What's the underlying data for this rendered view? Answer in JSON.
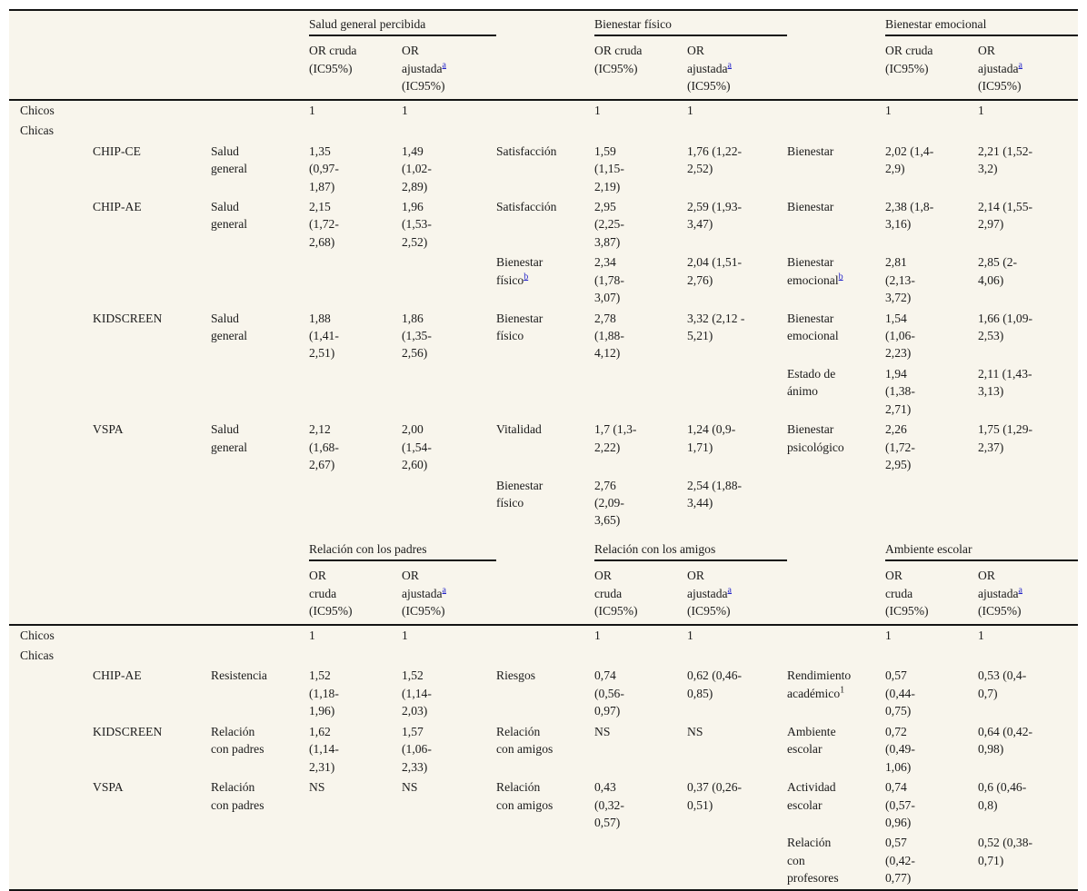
{
  "colors": {
    "table_background": "#f8f5ec",
    "rule_line": "#141414",
    "text": "#1b1b1b",
    "footnote_link": "#2323c8"
  },
  "table": {
    "sections": [
      {
        "groups": [
          {
            "title": "Salud general percibida"
          },
          {
            "title": "Bienestar físico"
          },
          {
            "title": "Bienestar emocional"
          }
        ],
        "or_headers": [
          {
            "pre": "OR cruda",
            "post": "(IC95%)"
          },
          {
            "pre": "OR ajustada",
            "sup": "a",
            "post": "(IC95%)"
          }
        ],
        "rows": [
          [
            "Chicos",
            "",
            "",
            "1",
            "1",
            "",
            "1",
            "1",
            "",
            "1",
            "1"
          ],
          [
            "Chicas",
            "",
            "",
            "",
            "",
            "",
            "",
            "",
            "",
            "",
            ""
          ],
          [
            "",
            "CHIP-CE",
            "Salud general",
            "1,35 (0,97-1,87)",
            "1,49 (1,02-2,89)",
            "Satisfacción",
            "1,59 (1,15-2,19)",
            "1,76 (1,22-2,52)",
            "Bienestar",
            "2,02 (1,4-2,9)",
            "2,21 (1,52-3,2)"
          ],
          [
            "",
            "CHIP-AE",
            "Salud general",
            "2,15 (1,72-2,68)",
            "1,96 (1,53-2,52)",
            "Satisfacción",
            "2,95 (2,25-3,87)",
            "2,59 (1,93-3,47)",
            "Bienestar",
            "2,38 (1,8-3,16)",
            "2,14 (1,55-2,97)"
          ],
          [
            "",
            "",
            "",
            "",
            "",
            {
              "t": "Bienestar físico",
              "sup": "b",
              "link": true
            },
            "2,34 (1,78-3,07)",
            "2,04 (1,51-2,76)",
            {
              "t": "Bienestar emocional",
              "sup": "b",
              "link": true
            },
            "2,81 (2,13-3,72)",
            "2,85 (2-4,06)"
          ],
          [
            "",
            "KIDSCREEN",
            "Salud general",
            "1,88 (1,41-2,51)",
            "1,86 (1,35-2,56)",
            "Bienestar físico",
            "2,78 (1,88-4,12)",
            "3,32 (2,12 - 5,21)",
            "Bienestar emocional",
            "1,54 (1,06-2,23)",
            "1,66 (1,09-2,53)"
          ],
          [
            "",
            "",
            "",
            "",
            "",
            "",
            "",
            "",
            "Estado de ánimo",
            "1,94 (1,38-2,71)",
            "2,11 (1,43-3,13)"
          ],
          [
            "",
            "VSPA",
            "Salud general",
            "2,12 (1,68-2,67)",
            "2,00 (1,54-2,60)",
            "Vitalidad",
            "1,7 (1,3-2,22)",
            "1,24 (0,9-1,71)",
            "Bienestar psicológico",
            "2,26 (1,72-2,95)",
            "1,75 (1,29-2,37)"
          ],
          [
            "",
            "",
            "",
            "",
            "",
            "Bienestar físico",
            "2,76 (2,09-3,65)",
            "2,54 (1,88-3,44)",
            "",
            "",
            ""
          ]
        ]
      },
      {
        "groups": [
          {
            "title": "Relación con los padres"
          },
          {
            "title": "Relación con los amigos"
          },
          {
            "title": "Ambiente escolar"
          }
        ],
        "or_headers": [
          {
            "pre": "OR cruda",
            "post": "(IC95%)"
          },
          {
            "pre": "OR ajustada",
            "sup": "a",
            "post": "(IC95%)"
          }
        ],
        "rows": [
          [
            "Chicos",
            "",
            "",
            "1",
            "1",
            "",
            "1",
            "1",
            "",
            "1",
            "1"
          ],
          [
            "Chicas",
            "",
            "",
            "",
            "",
            "",
            "",
            "",
            "",
            "",
            ""
          ],
          [
            "",
            "CHIP-AE",
            "Resistencia",
            "1,52 (1,18-1,96)",
            "1,52 (1,14-2,03)",
            "Riesgos",
            "0,74 (0,56-0,97)",
            "0,62 (0,46-0,85)",
            {
              "t": "Rendimiento académico",
              "sup": "1",
              "link": false
            },
            "0,57 (0,44-0,75)",
            "0,53 (0,4-0,7)"
          ],
          [
            "",
            "KIDSCREEN",
            "Relación con padres",
            "1,62 (1,14-2,31)",
            "1,57 (1,06-2,33)",
            "Relación con amigos",
            "NS",
            "NS",
            "Ambiente escolar",
            "0,72 (0,49-1,06)",
            "0,64 (0,42-0,98)"
          ],
          [
            "",
            "VSPA",
            "Relación con padres",
            "NS",
            "NS",
            "Relación con amigos",
            "0,43 (0,32-0,57)",
            "0,37 (0,26-0,51)",
            "Actividad escolar",
            "0,74 (0,57-0,96)",
            "0,6 (0,46-0,8)"
          ],
          [
            "",
            "",
            "",
            "",
            "",
            "",
            "",
            "",
            "Relación con profesores",
            "0,57 (0,42-0,77)",
            "0,52 (0,38-0,71)"
          ]
        ]
      }
    ]
  }
}
